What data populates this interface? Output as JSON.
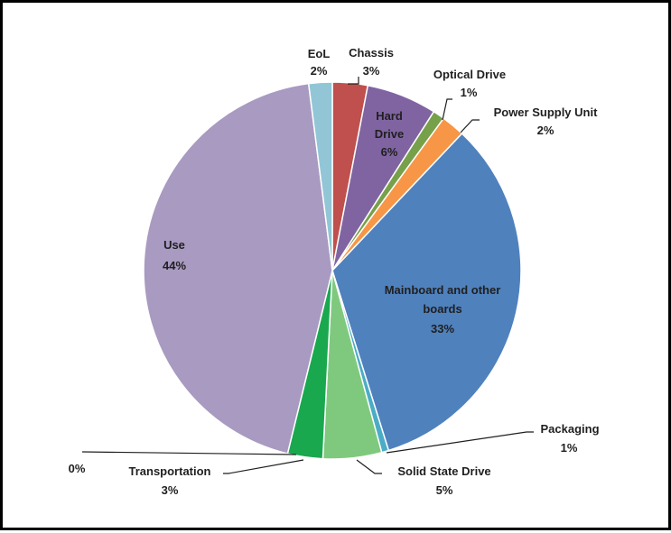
{
  "chart_data": {
    "type": "pie",
    "slices": [
      {
        "name": "Chassis",
        "label": "3%",
        "value": 3,
        "color": "#c0504d"
      },
      {
        "name": "Hard Drive",
        "label": "6%",
        "value": 6,
        "color": "#8064a2"
      },
      {
        "name": "Optical Drive",
        "label": "1%",
        "value": 1,
        "color": "#77a04a"
      },
      {
        "name": "Power Supply Unit",
        "label": "2%",
        "value": 2,
        "color": "#f79646"
      },
      {
        "name": "Mainboard and other boards",
        "label": "33%",
        "value": 33,
        "color": "#4f81bd"
      },
      {
        "name": "Packaging",
        "label": "1%",
        "value": 0.6,
        "color": "#4bacc6"
      },
      {
        "name": "Solid State Drive",
        "label": "5%",
        "value": 5,
        "color": "#7fc97f"
      },
      {
        "name": "Transportation",
        "label": "3%",
        "value": 3,
        "color": "#1aa84f"
      },
      {
        "name": "",
        "label": "0%",
        "value": 0,
        "color": "#ffffff"
      },
      {
        "name": "Use",
        "label": "44%",
        "value": 44,
        "color": "#a99ac1"
      },
      {
        "name": "EoL",
        "label": "2%",
        "value": 2,
        "color": "#92c6d6"
      }
    ]
  }
}
